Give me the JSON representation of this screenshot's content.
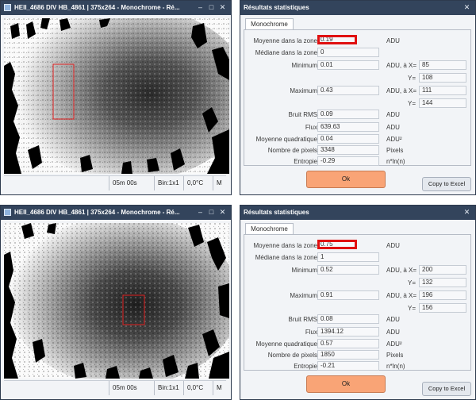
{
  "image_windows": [
    {
      "title": "HEII_4686 DIV HB_4861 | 375x264 - Monochrome - Ré...",
      "status": [
        "05m 00s",
        "Bin:1x1",
        "0,0°C",
        "M"
      ]
    },
    {
      "title": "HEII_4686 DIV HB_4861 | 375x264 - Monochrome - Ré...",
      "status": [
        "05m 00s",
        "Bin:1x1",
        "0,0°C",
        "M"
      ]
    }
  ],
  "title_buttons": {
    "minimize": "–",
    "maximize": "□",
    "close": "✕"
  },
  "stats_windows": [
    {
      "title": "Résultats statistiques",
      "tab": "Monochrome",
      "rows": {
        "mean": {
          "label": "Moyenne dans la zone",
          "value": "0.19",
          "unit": "ADU"
        },
        "median": {
          "label": "Médiane dans la zone",
          "value": "0"
        },
        "min": {
          "label": "Minimum",
          "value": "0.01",
          "unit": "ADU, à X=",
          "x": "85",
          "y_label": "Y=",
          "y": "108"
        },
        "max": {
          "label": "Maximum",
          "value": "0.43",
          "unit": "ADU, à X=",
          "x": "111",
          "y_label": "Y=",
          "y": "144"
        },
        "rms": {
          "label": "Bruit RMS",
          "value": "0.09",
          "unit": "ADU"
        },
        "flux": {
          "label": "Flux",
          "value": "639.63",
          "unit": "ADU"
        },
        "quad": {
          "label": "Moyenne quadratique",
          "value": "0.04",
          "unit": "ADU²"
        },
        "pixels": {
          "label": "Nombre de pixels",
          "value": "3348",
          "unit": "Pixels"
        },
        "entropy": {
          "label": "Entropie",
          "value": "-0.29",
          "unit": "n*ln(n)"
        }
      },
      "ok": "Ok",
      "copy": "Copy to Excel"
    },
    {
      "title": "Résultats statistiques",
      "tab": "Monochrome",
      "rows": {
        "mean": {
          "label": "Moyenne dans la zone",
          "value": "0.75",
          "unit": "ADU"
        },
        "median": {
          "label": "Médiane dans la zone",
          "value": "1"
        },
        "min": {
          "label": "Minimum",
          "value": "0.52",
          "unit": "ADU, à X=",
          "x": "200",
          "y_label": "Y=",
          "y": "132"
        },
        "max": {
          "label": "Maximum",
          "value": "0.91",
          "unit": "ADU, à X=",
          "x": "196",
          "y_label": "Y=",
          "y": "156"
        },
        "rms": {
          "label": "Bruit RMS",
          "value": "0.08",
          "unit": "ADU"
        },
        "flux": {
          "label": "Flux",
          "value": "1394.12",
          "unit": "ADU"
        },
        "quad": {
          "label": "Moyenne quadratique",
          "value": "0.57",
          "unit": "ADU²"
        },
        "pixels": {
          "label": "Nombre de pixels",
          "value": "1850",
          "unit": "Pixels"
        },
        "entropy": {
          "label": "Entropie",
          "value": "-0.21",
          "unit": "n*ln(n)"
        }
      },
      "ok": "Ok",
      "copy": "Copy to Excel"
    }
  ],
  "colors": {
    "titlebar": "#33445c",
    "window_bg": "#f2f4f7",
    "ok_button": "#f9a476",
    "highlight_border": "#e01010",
    "roi_rect": "#e02020"
  }
}
